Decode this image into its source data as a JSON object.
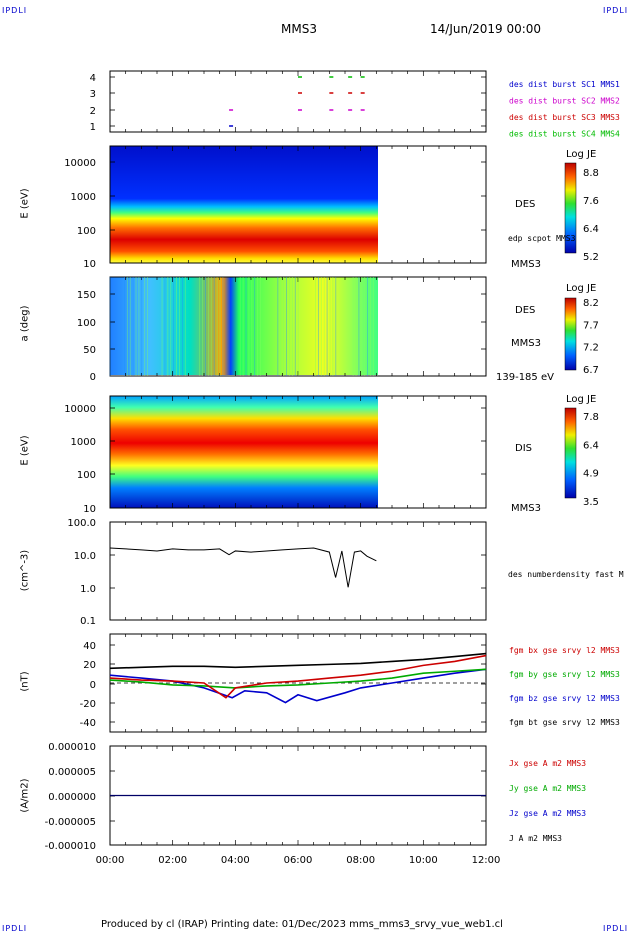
{
  "corner_label": "IPDLI",
  "header": {
    "spacecraft": "MMS3",
    "date": "14/Jun/2019 00:00"
  },
  "footer": "Produced by cl (IRAP)   Printing date: 01/Dec/2023   mms_mms3_srvy_vue_web1.cl",
  "xaxis": {
    "ticks": [
      "00:00",
      "02:00",
      "04:00",
      "06:00",
      "08:00",
      "10:00",
      "12:00"
    ],
    "range_hours": [
      0,
      12
    ]
  },
  "panels": {
    "burst": {
      "yticks": [
        "4",
        "3",
        "2",
        "1"
      ],
      "legend": [
        {
          "label": "des dist burst SC1 MMS1",
          "color": "#0000cc"
        },
        {
          "label": "des dist burst SC2 MMS2",
          "color": "#cc00cc"
        },
        {
          "label": "des dist burst SC3 MMS3",
          "color": "#cc0000"
        },
        {
          "label": "des dist burst SC4 MMS4",
          "color": "#00bb00"
        }
      ]
    },
    "des_energy": {
      "ylabel": "E (eV)",
      "yticks": [
        "10000",
        "1000",
        "100",
        "10"
      ],
      "instrument": "DES",
      "overlay": "edp scpot MMS3",
      "sc": "MMS3",
      "colorbar": {
        "title": "Log JE",
        "labels": [
          "8.8",
          "7.6",
          "6.4",
          "5.2"
        ]
      }
    },
    "des_pitch": {
      "ylabel": "a (deg)",
      "yticks": [
        "150",
        "100",
        "50",
        "0"
      ],
      "instrument": "DES",
      "sc": "MMS3",
      "energy_range": "139-185 eV",
      "colorbar": {
        "title": "Log JE",
        "labels": [
          "8.2",
          "7.7",
          "7.2",
          "6.7"
        ]
      }
    },
    "dis_energy": {
      "ylabel": "E (eV)",
      "yticks": [
        "10000",
        "1000",
        "100",
        "10"
      ],
      "instrument": "DIS",
      "sc": "MMS3",
      "colorbar": {
        "title": "Log JE",
        "labels": [
          "7.8",
          "6.4",
          "4.9",
          "3.5"
        ]
      }
    },
    "density": {
      "ylabel": "(cm^-3)",
      "yticks": [
        "100.0",
        "10.0",
        "1.0",
        "0.1"
      ],
      "legend": "des numberdensity fast M"
    },
    "field": {
      "ylabel": "(nT)",
      "yticks": [
        "40",
        "20",
        "0",
        "-20",
        "-40"
      ],
      "legend": [
        {
          "label": "fgm bx gse srvy l2 MMS3",
          "color": "#cc0000"
        },
        {
          "label": "fgm by gse srvy l2 MMS3",
          "color": "#00aa00"
        },
        {
          "label": "fgm bz gse srvy l2 MMS3",
          "color": "#0000cc"
        },
        {
          "label": "fgm bt gse srvy l2 MMS3",
          "color": "#000000"
        }
      ]
    },
    "current": {
      "ylabel": "(A/m2)",
      "yticks": [
        "0.000010",
        "0.000005",
        "0.000000",
        "-0.000005",
        "-0.000010"
      ],
      "legend": [
        {
          "label": "Jx gse A m2 MMS3",
          "color": "#cc0000"
        },
        {
          "label": "Jy gse A m2 MMS3",
          "color": "#00aa00"
        },
        {
          "label": "Jz gse A m2 MMS3",
          "color": "#0000cc"
        },
        {
          "label": "J A m2 MMS3",
          "color": "#000000"
        }
      ]
    }
  },
  "chart_data": {
    "type": "line",
    "x_unit": "hours UT",
    "data_end_hours": 8.5,
    "density": {
      "ylim": [
        0.1,
        100
      ],
      "log": true,
      "x": [
        0,
        0.5,
        1,
        1.5,
        2,
        2.5,
        3,
        3.5,
        3.8,
        4,
        4.5,
        5,
        5.5,
        6,
        6.5,
        7,
        7.2,
        7.4,
        7.6,
        7.8,
        8,
        8.2,
        8.5
      ],
      "y": [
        16,
        15,
        14,
        13,
        15,
        14,
        14,
        15,
        10,
        13,
        12,
        13,
        14,
        15,
        16,
        12,
        2,
        13,
        1,
        12,
        13,
        9,
        6.5
      ]
    },
    "bt": {
      "ylim": [
        -50,
        50
      ],
      "x": [
        0,
        1,
        2,
        3,
        4,
        5,
        6,
        7,
        8,
        9,
        10,
        11,
        12
      ],
      "y": [
        15,
        16,
        17,
        17,
        16,
        17,
        18,
        19,
        20,
        22,
        24,
        27,
        30
      ]
    },
    "bx": {
      "x": [
        0,
        1,
        2,
        3,
        3.7,
        4,
        5,
        6,
        7,
        8,
        9,
        10,
        11,
        12
      ],
      "y": [
        5,
        3,
        2,
        0,
        -15,
        -5,
        0,
        2,
        5,
        8,
        12,
        18,
        22,
        28
      ]
    },
    "by": {
      "x": [
        0,
        1,
        2,
        3,
        4,
        5,
        6,
        7,
        8,
        9,
        10,
        11,
        12
      ],
      "y": [
        3,
        1,
        -2,
        -3,
        -5,
        -3,
        -2,
        0,
        2,
        5,
        10,
        12,
        14
      ]
    },
    "bz": {
      "x": [
        0,
        1,
        2,
        3,
        3.9,
        4.3,
        5,
        5.6,
        6,
        6.6,
        7.5,
        8,
        9,
        10,
        11,
        12
      ],
      "y": [
        8,
        5,
        2,
        -5,
        -15,
        -8,
        -10,
        -20,
        -12,
        -18,
        -10,
        -5,
        0,
        5,
        10,
        14
      ]
    },
    "current": {
      "ylim": [
        -1e-05,
        1e-05
      ],
      "x": [
        0,
        8.5
      ],
      "y": [
        0,
        0
      ]
    }
  }
}
